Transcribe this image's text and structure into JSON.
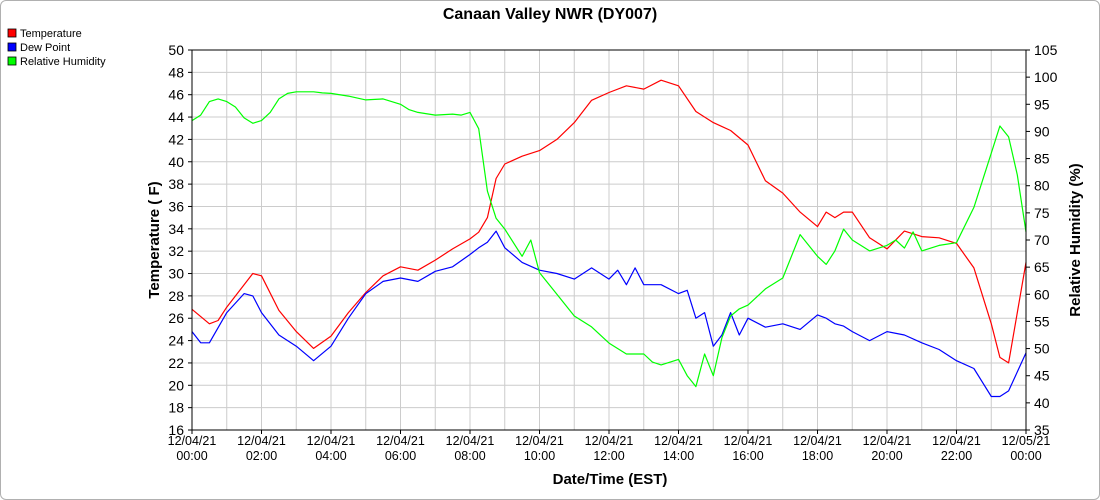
{
  "chart_data": {
    "type": "line",
    "title": "Canaan Valley NWR (DY007)",
    "xlabel": "Date/Time (EST)",
    "ylabel_left": "Temperature ( F)",
    "ylabel_right": "Relative Humidity (%)",
    "xlim_hours": [
      0,
      24
    ],
    "ylim_left": [
      16,
      50
    ],
    "ylim_right": [
      35,
      105
    ],
    "grid": true,
    "legend_position": "top-left",
    "x_tick_hours": [
      0,
      2,
      4,
      6,
      8,
      10,
      12,
      14,
      16,
      18,
      20,
      22,
      24
    ],
    "x_tick_labels": [
      [
        "12/04/21",
        "00:00"
      ],
      [
        "12/04/21",
        "02:00"
      ],
      [
        "12/04/21",
        "04:00"
      ],
      [
        "12/04/21",
        "06:00"
      ],
      [
        "12/04/21",
        "08:00"
      ],
      [
        "12/04/21",
        "10:00"
      ],
      [
        "12/04/21",
        "12:00"
      ],
      [
        "12/04/21",
        "14:00"
      ],
      [
        "12/04/21",
        "16:00"
      ],
      [
        "12/04/21",
        "18:00"
      ],
      [
        "12/04/21",
        "20:00"
      ],
      [
        "12/04/21",
        "22:00"
      ],
      [
        "12/05/21",
        "00:00"
      ]
    ],
    "y_left_ticks": [
      "16",
      "18",
      "20",
      "22",
      "24",
      "26",
      "28",
      "30",
      "32",
      "34",
      "36",
      "38",
      "40",
      "42",
      "44",
      "46",
      "48",
      "50"
    ],
    "y_right_ticks": [
      "35",
      "40",
      "45",
      "50",
      "55",
      "60",
      "65",
      "70",
      "75",
      "80",
      "85",
      "90",
      "95",
      "100",
      "105"
    ],
    "series": [
      {
        "name": "Temperature",
        "axis": "left",
        "color": "#ff0000",
        "hours": [
          0,
          0.5,
          0.75,
          1,
          1.5,
          1.75,
          2,
          2.5,
          3,
          3.5,
          4,
          4.5,
          5,
          5.5,
          6,
          6.5,
          7,
          7.5,
          8,
          8.25,
          8.5,
          8.75,
          9,
          9.5,
          10,
          10.5,
          11,
          11.5,
          12,
          12.5,
          13,
          13.5,
          14,
          14.5,
          15,
          15.5,
          16,
          16.5,
          17,
          17.5,
          18,
          18.25,
          18.5,
          18.75,
          19,
          19.5,
          20,
          20.5,
          21,
          21.5,
          22,
          22.5,
          23,
          23.25,
          23.5,
          24
        ],
        "values": [
          26.8,
          25.5,
          25.8,
          27,
          29,
          30,
          29.8,
          26.7,
          24.8,
          23.3,
          24.4,
          26.5,
          28.3,
          29.8,
          30.6,
          30.3,
          31.2,
          32.2,
          33.1,
          33.7,
          35,
          38.5,
          39.8,
          40.5,
          41,
          42,
          43.5,
          45.5,
          46.2,
          46.8,
          46.5,
          47.3,
          46.8,
          44.5,
          43.5,
          42.8,
          41.5,
          38.3,
          37.2,
          35.5,
          34.2,
          35.5,
          35,
          35.5,
          35.5,
          33.2,
          32.2,
          33.8,
          33.3,
          33.2,
          32.7,
          30.5,
          25.5,
          22.5,
          22,
          31
        ]
      },
      {
        "name": "Dew Point",
        "axis": "left",
        "color": "#0000ff",
        "hours": [
          0,
          0.25,
          0.5,
          1,
          1.5,
          1.75,
          2,
          2.5,
          3,
          3.5,
          4,
          4.5,
          5,
          5.5,
          6,
          6.5,
          7,
          7.5,
          8,
          8.25,
          8.5,
          8.75,
          9,
          9.5,
          10,
          10.5,
          11,
          11.5,
          12,
          12.25,
          12.5,
          12.75,
          13,
          13.5,
          14,
          14.25,
          14.5,
          14.75,
          15,
          15.25,
          15.5,
          15.75,
          16,
          16.5,
          17,
          17.5,
          18,
          18.25,
          18.5,
          18.75,
          19,
          19.5,
          20,
          20.5,
          21,
          21.5,
          22,
          22.5,
          23,
          23.25,
          23.5,
          24
        ],
        "values": [
          24.8,
          23.8,
          23.8,
          26.5,
          28.2,
          28,
          26.5,
          24.5,
          23.5,
          22.2,
          23.5,
          26,
          28.2,
          29.3,
          29.6,
          29.3,
          30.2,
          30.6,
          31.7,
          32.3,
          32.8,
          33.8,
          32.3,
          31,
          30.3,
          30,
          29.5,
          30.5,
          29.5,
          30.3,
          29,
          30.5,
          29,
          29,
          28.2,
          28.5,
          26,
          26.5,
          23.5,
          24.5,
          26.5,
          24.5,
          26,
          25.2,
          25.5,
          25,
          26.3,
          26,
          25.5,
          25.3,
          24.8,
          24,
          24.8,
          24.5,
          23.8,
          23.2,
          22.2,
          21.5,
          19,
          19,
          19.5,
          22.9
        ]
      },
      {
        "name": "Relative Humidity",
        "axis": "right",
        "color": "#00ff00",
        "hours": [
          0,
          0.25,
          0.5,
          0.75,
          1,
          1.25,
          1.5,
          1.75,
          2,
          2.25,
          2.5,
          2.75,
          3,
          3.25,
          3.5,
          3.75,
          4,
          4.5,
          5,
          5.5,
          6,
          6.25,
          6.5,
          7,
          7.5,
          7.75,
          8,
          8.25,
          8.5,
          8.75,
          9,
          9.5,
          9.75,
          10,
          10.5,
          11,
          11.5,
          12,
          12.5,
          13,
          13.25,
          13.5,
          14,
          14.25,
          14.5,
          14.75,
          15,
          15.25,
          15.5,
          15.75,
          16,
          16.5,
          17,
          17.5,
          18,
          18.25,
          18.5,
          18.75,
          19,
          19.5,
          20,
          20.25,
          20.5,
          20.75,
          21,
          21.5,
          22,
          22.5,
          23,
          23.25,
          23.5,
          23.75,
          24
        ],
        "values": [
          92,
          93,
          95.5,
          96,
          95.5,
          94.5,
          92.5,
          91.5,
          92,
          93.5,
          96,
          97,
          97.3,
          97.3,
          97.3,
          97.1,
          97,
          96.5,
          95.8,
          96,
          95,
          94,
          93.5,
          93,
          93.2,
          93,
          93.5,
          90.5,
          79,
          74,
          72,
          67,
          70,
          64,
          60,
          56,
          54,
          51,
          49,
          49,
          47.5,
          47,
          48,
          45,
          43,
          49,
          45,
          52,
          56,
          57.3,
          58,
          61,
          63,
          71,
          67,
          65.5,
          68,
          72,
          70,
          68,
          69,
          70,
          68.5,
          71.5,
          68,
          69,
          69.5,
          76,
          86,
          91,
          89,
          82,
          71.5
        ]
      }
    ]
  }
}
